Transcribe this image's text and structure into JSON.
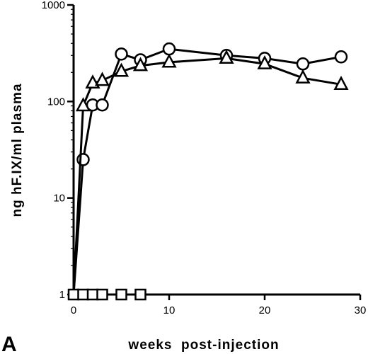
{
  "chart_data": {
    "type": "line",
    "panel_label": "A",
    "title": "",
    "xlabel": "weeks  post-injection",
    "ylabel": "ng  hF.IX/ml  plasma",
    "xlim": [
      0,
      30
    ],
    "ylim": [
      1,
      1000
    ],
    "yscale": "log",
    "xticks": [
      0,
      10,
      20,
      30
    ],
    "yticks": [
      1,
      10,
      100,
      1000
    ],
    "grid": false,
    "series": [
      {
        "marker": "circle",
        "x": [
          0,
          1,
          2,
          3,
          5,
          7,
          10,
          16,
          20,
          24,
          28
        ],
        "values": [
          1,
          25,
          92,
          92,
          310,
          270,
          350,
          300,
          280,
          245,
          290
        ]
      },
      {
        "marker": "triangle",
        "x": [
          0,
          1,
          2,
          3,
          5,
          7,
          10,
          16,
          20,
          24,
          28
        ],
        "values": [
          1,
          90,
          155,
          165,
          205,
          235,
          255,
          280,
          245,
          175,
          150
        ]
      },
      {
        "marker": "square",
        "x": [
          0,
          1,
          2,
          3,
          5,
          7
        ],
        "values": [
          1,
          1,
          1,
          1,
          1,
          1
        ]
      }
    ]
  }
}
